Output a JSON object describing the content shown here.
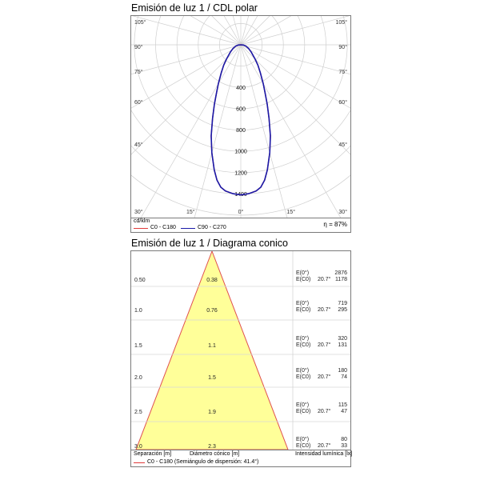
{
  "polar": {
    "title": "Emisión de luz 1 / CDL polar",
    "unit": "cd/klm",
    "efficiency": "η = 87%",
    "legend": [
      {
        "label": "C0 - C180",
        "color": "#e03a3a"
      },
      {
        "label": "C90 - C270",
        "color": "#1a1aa8"
      }
    ]
  },
  "cone": {
    "title": "Emisión de luz 1 / Diagrama conico",
    "footer": {
      "separation_label": "Separación [m]",
      "diameter_label": "Diámetro cónico [m]",
      "intensity_label": "Intensidad lumínica [lx]",
      "note": "C0 - C180 (Semiángulo de dispersión: 41.4°)"
    }
  },
  "chart_data": [
    {
      "type": "polar",
      "title": "Emisión de luz 1 / CDL polar",
      "unit": "cd/klm",
      "radial_ticks": [
        400,
        600,
        800,
        1000,
        1200,
        1400
      ],
      "angle_labels_left": [
        "105°",
        "90°",
        "75°",
        "60°",
        "45°",
        "30°",
        "15°"
      ],
      "angle_labels_right": [
        "105°",
        "90°",
        "75°",
        "60°",
        "45°",
        "30°",
        "15°"
      ],
      "angle_label_bottom": "0°",
      "efficiency": "η = 87%",
      "series": [
        {
          "name": "C0 - C180",
          "color": "#e03a3a",
          "points": [
            [
              0,
              1410
            ],
            [
              3,
              1400
            ],
            [
              6,
              1380
            ],
            [
              8,
              1350
            ],
            [
              10,
              1290
            ],
            [
              12,
              1200
            ],
            [
              15,
              1050
            ],
            [
              18,
              900
            ],
            [
              21,
              740
            ],
            [
              24,
              610
            ],
            [
              27,
              500
            ],
            [
              30,
              420
            ],
            [
              35,
              320
            ],
            [
              40,
              250
            ],
            [
              45,
              190
            ],
            [
              55,
              120
            ],
            [
              65,
              80
            ],
            [
              75,
              50
            ],
            [
              85,
              25
            ],
            [
              90,
              0
            ]
          ]
        },
        {
          "name": "C90 - C270",
          "color": "#1a1aa8",
          "points": [
            [
              0,
              1410
            ],
            [
              3,
              1400
            ],
            [
              6,
              1380
            ],
            [
              8,
              1350
            ],
            [
              10,
              1290
            ],
            [
              12,
              1200
            ],
            [
              15,
              1050
            ],
            [
              18,
              900
            ],
            [
              21,
              740
            ],
            [
              24,
              610
            ],
            [
              27,
              500
            ],
            [
              30,
              420
            ],
            [
              35,
              320
            ],
            [
              40,
              250
            ],
            [
              45,
              190
            ],
            [
              55,
              120
            ],
            [
              65,
              80
            ],
            [
              75,
              50
            ],
            [
              85,
              25
            ],
            [
              90,
              0
            ]
          ]
        }
      ]
    },
    {
      "type": "cone",
      "title": "Emisión de luz 1 / Diagrama conico",
      "half_angle": "41.4°",
      "rows": [
        {
          "separation": "0.50",
          "diameter": "0.38",
          "e0_label": "E(0°)",
          "ec0_label": "E(C0)",
          "angle": "20.7°",
          "e0": "2876",
          "ec0": "1178"
        },
        {
          "separation": "1.0",
          "diameter": "0.76",
          "e0_label": "E(0°)",
          "ec0_label": "E(C0)",
          "angle": "20.7°",
          "e0": "719",
          "ec0": "295"
        },
        {
          "separation": "1.5",
          "diameter": "1.1",
          "e0_label": "E(0°)",
          "ec0_label": "E(C0)",
          "angle": "20.7°",
          "e0": "320",
          "ec0": "131"
        },
        {
          "separation": "2.0",
          "diameter": "1.5",
          "e0_label": "E(0°)",
          "ec0_label": "E(C0)",
          "angle": "20.7°",
          "e0": "180",
          "ec0": "74"
        },
        {
          "separation": "2.5",
          "diameter": "1.9",
          "e0_label": "E(0°)",
          "ec0_label": "E(C0)",
          "angle": "20.7°",
          "e0": "115",
          "ec0": "47"
        },
        {
          "separation": "3.0",
          "diameter": "2.3",
          "e0_label": "E(0°)",
          "ec0_label": "E(C0)",
          "angle": "20.7°",
          "e0": "80",
          "ec0": "33"
        }
      ]
    }
  ]
}
